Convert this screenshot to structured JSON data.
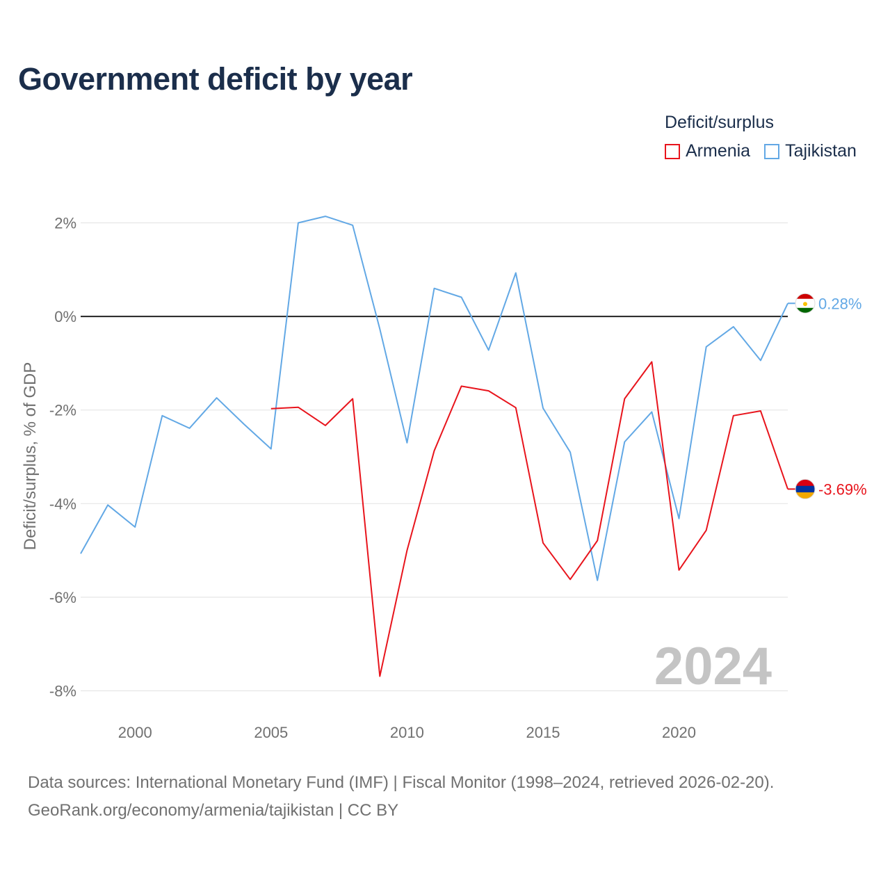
{
  "title": "Government deficit by year",
  "legend": {
    "title": "Deficit/surplus",
    "items": [
      {
        "name": "Armenia",
        "color": "#e8141c"
      },
      {
        "name": "Tajikistan",
        "color": "#62a8e5"
      }
    ]
  },
  "source": {
    "line1": "Data sources: International Monetary Fund (IMF) | Fiscal Monitor (1998–2024, retrieved 2026-02-20).",
    "line2": "GeoRank.org/economy/armenia/tajikistan | CC BY"
  },
  "chart_data": {
    "type": "line",
    "title": "Government deficit by year",
    "xlabel": "",
    "ylabel": "Deficit/surplus, % of GDP",
    "xlim": [
      1998,
      2024
    ],
    "ylim": [
      -8,
      2
    ],
    "y_ticks": [
      2,
      0,
      -2,
      -4,
      -6,
      -8
    ],
    "y_tick_labels": [
      "2%",
      "0%",
      "-2%",
      "-4%",
      "-6%",
      "-8%"
    ],
    "x_ticks": [
      2000,
      2005,
      2010,
      2015,
      2020
    ],
    "x_tick_labels": [
      "2000",
      "2005",
      "2010",
      "2015",
      "2020"
    ],
    "watermark_year": "2024",
    "series": [
      {
        "name": "Tajikistan",
        "color": "#62a8e5",
        "end_label": "0.28%",
        "x": [
          1998,
          1999,
          2000,
          2001,
          2002,
          2003,
          2004,
          2005,
          2006,
          2007,
          2008,
          2009,
          2010,
          2011,
          2012,
          2013,
          2014,
          2015,
          2016,
          2017,
          2018,
          2019,
          2020,
          2021,
          2022,
          2023,
          2024
        ],
        "values": [
          -5.07,
          -4.03,
          -4.5,
          -2.12,
          -2.39,
          -1.74,
          -2.3,
          -2.83,
          2.0,
          2.14,
          1.95,
          -0.27,
          -2.7,
          0.6,
          0.41,
          -0.72,
          0.93,
          -1.96,
          -2.9,
          -5.64,
          -2.68,
          -2.04,
          -4.32,
          -0.65,
          -0.22,
          -0.94,
          0.28
        ]
      },
      {
        "name": "Armenia",
        "color": "#e8141c",
        "end_label": "-3.69%",
        "x": [
          2005,
          2006,
          2007,
          2008,
          2009,
          2010,
          2011,
          2012,
          2013,
          2014,
          2015,
          2016,
          2017,
          2018,
          2019,
          2020,
          2021,
          2022,
          2023,
          2024
        ],
        "values": [
          -1.97,
          -1.94,
          -2.33,
          -1.76,
          -7.69,
          -5.0,
          -2.87,
          -1.49,
          -1.59,
          -1.95,
          -4.84,
          -5.62,
          -4.79,
          -1.76,
          -0.97,
          -5.42,
          -4.57,
          -2.12,
          -2.02,
          -3.69
        ]
      }
    ]
  }
}
